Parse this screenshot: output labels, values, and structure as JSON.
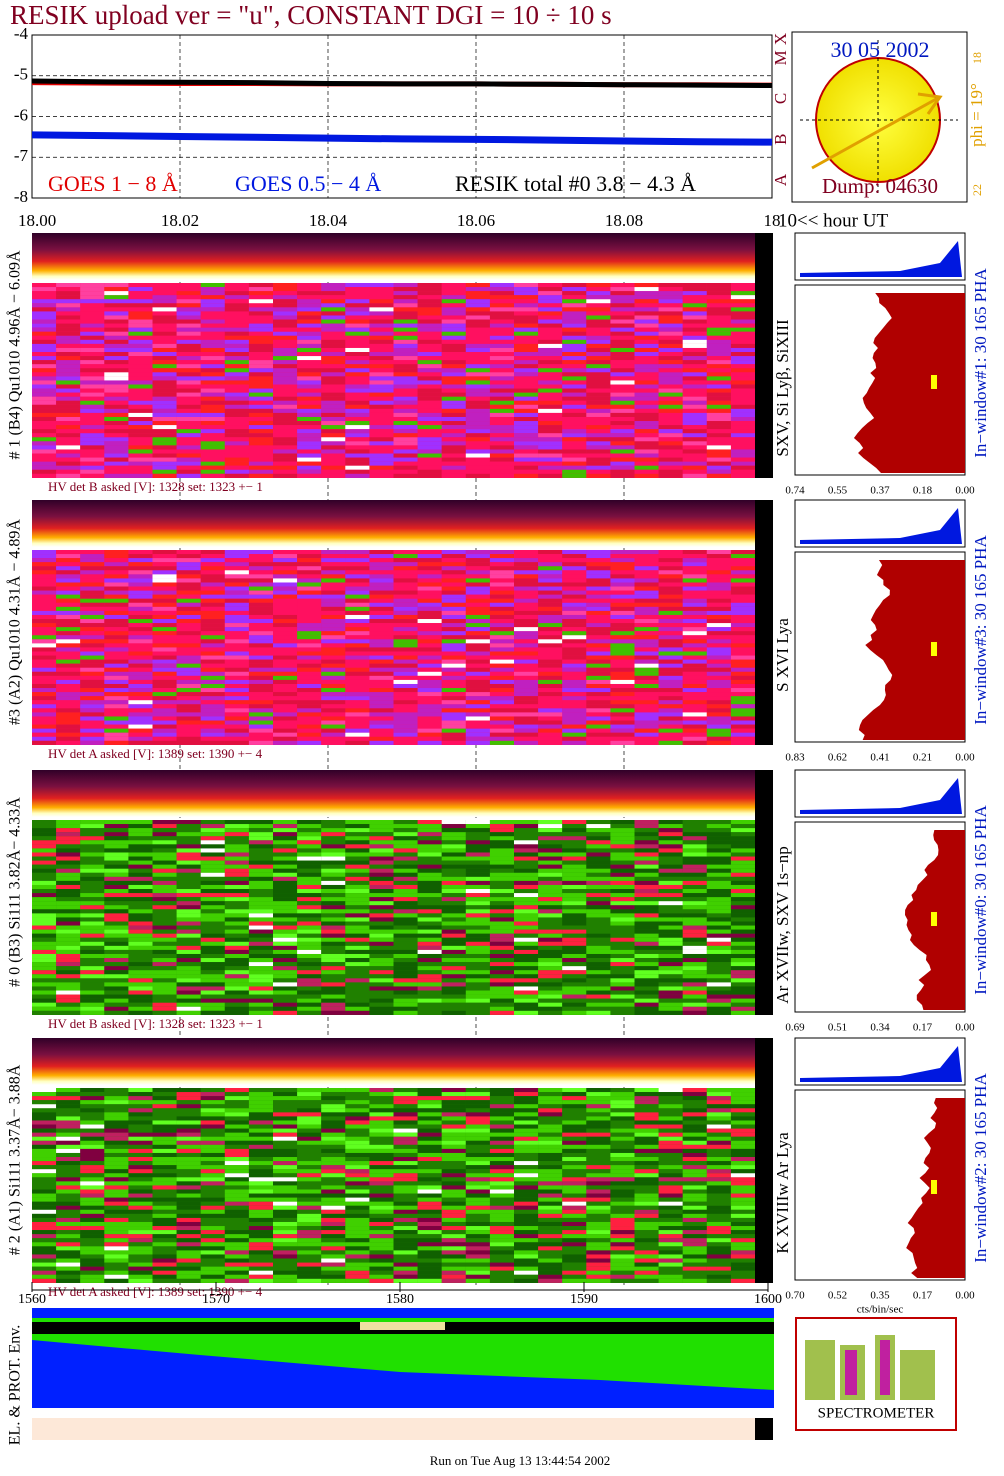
{
  "chart_data": {
    "type": "line",
    "title": "RESIK upload ver = \"u\", CONSTANT  DGI =  10 ÷  10 s",
    "x": [
      18.0,
      18.01,
      18.02,
      18.03,
      18.04,
      18.05,
      18.06,
      18.07,
      18.08,
      18.09,
      18.1
    ],
    "xlim": [
      18.0,
      18.1
    ],
    "xticks": [
      {
        "value": 18.0,
        "label": "18.00"
      },
      18.02,
      18.04,
      18.06,
      18.08,
      {
        "value": 18.1,
        "label": "18"
      }
    ],
    "xlabel": "10<< hour UT",
    "ylim": [
      -8,
      -4
    ],
    "yticks": [
      -8,
      -7,
      -6,
      -5,
      -4
    ],
    "class_labels": [
      "A",
      "B",
      "C",
      "M",
      "X"
    ],
    "grid": true,
    "series": [
      {
        "name": "GOES 1 − 8 Å",
        "color": "#e00000",
        "values": [
          -5.17,
          -5.18,
          -5.19,
          -5.19,
          -5.2,
          -5.2,
          -5.2,
          -5.21,
          -5.22,
          -5.22,
          -5.23
        ]
      },
      {
        "name": "GOES 0.5 − 4 Å",
        "color": "#0018e0",
        "values": [
          -6.45,
          -6.47,
          -6.49,
          -6.51,
          -6.53,
          -6.55,
          -6.56,
          -6.58,
          -6.6,
          -6.62,
          -6.63
        ]
      },
      {
        "name": "RESIK total #0  3.8 − 4.3 Å",
        "color": "#000000",
        "values": [
          -5.13,
          -5.15,
          -5.16,
          -5.17,
          -5.19,
          -5.2,
          -5.2,
          -5.21,
          -5.22,
          -5.23,
          -5.24
        ]
      }
    ]
  },
  "sun_box": {
    "date": "30 05 2002",
    "dump": "Dump: 04630",
    "phi": "phi = 19°",
    "top_num": "18",
    "bottom_num": "22"
  },
  "panels": [
    {
      "left_label": "# 1 (B4) Qu1010 4.96Å − 6.09Å",
      "right_label": "SXV, Si Lyβ, SiXIII",
      "hv": "HV det B asked [V]:  1328 set:  1323 +−    1",
      "pha": "In−window#1:   30 165 PHA",
      "pha_ticks": [
        "0.74",
        "0.55",
        "0.37",
        "0.18",
        "0.00"
      ],
      "warm": true
    },
    {
      "left_label": "#3 (A2) Qu1010  4.31Å − 4.89Å",
      "right_label": "S XVI Lya",
      "hv": "HV det A asked [V]:  1389 set:  1390 +−    4",
      "pha": "In−window#3:   30 165 PHA",
      "pha_ticks": [
        "0.83",
        "0.62",
        "0.41",
        "0.21",
        "0.00"
      ],
      "warm": true
    },
    {
      "left_label": "# 0 (B3) Si111  3.82Å− 4.33Å",
      "right_label": "Ar XVIIw,  SXV 1s−np",
      "hv": "HV det B asked [V]:  1328 set:  1323 +−    1",
      "pha": "In−window#0:   30 165 PHA",
      "pha_ticks": [
        "0.69",
        "0.51",
        "0.34",
        "0.17",
        "0.00"
      ],
      "warm": false
    },
    {
      "left_label": "# 2 (A1) Si111  3.37Å− 3.88Å",
      "right_label": "K XVIIIw  Ar Lya",
      "hv": "HV det A asked [V]:  1389 set:  1390 +−    4",
      "pha": "In−window#2:   30 165 PHA",
      "pha_ticks": [
        "0.70",
        "0.52",
        "0.35",
        "0.17",
        "0.00"
      ],
      "warm": false
    }
  ],
  "pha_unit": "cts/bin/sec",
  "bottom_axis": {
    "xlim": [
      1560,
      1600
    ],
    "xticks": [
      1560,
      1570,
      1580,
      1590,
      1600
    ]
  },
  "env_label": "EL. & PROT. Env.",
  "logo": "SPECTROMETER",
  "footer": "Run on Tue Aug 13 13:44:54 2002"
}
